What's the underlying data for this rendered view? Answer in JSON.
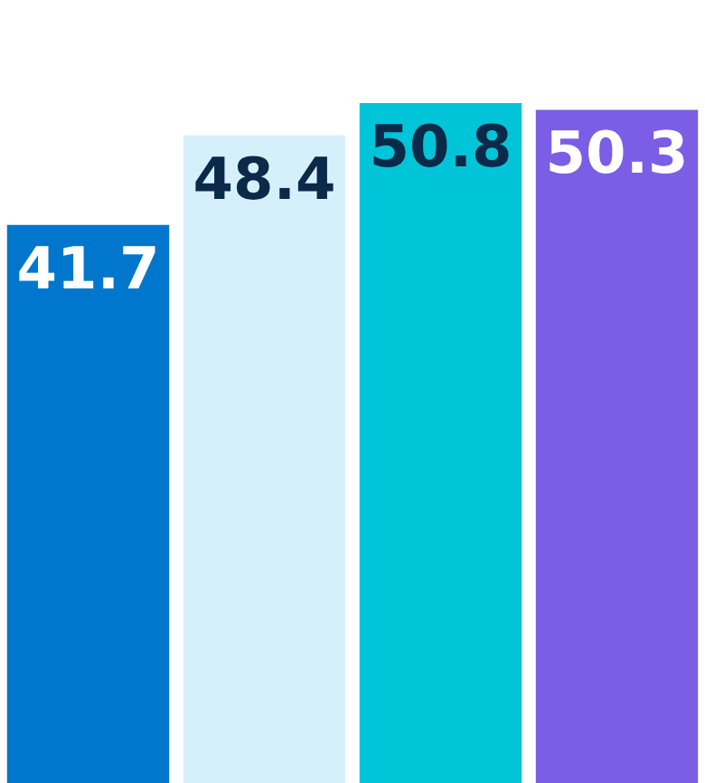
{
  "chart_data": {
    "type": "bar",
    "categories": [
      null,
      null,
      null,
      null
    ],
    "values": [
      41.7,
      48.4,
      50.8,
      50.3
    ],
    "colors": [
      "#0077cc",
      "#d6f0fb",
      "#00c4d8",
      "#7b5de6"
    ],
    "data_labels": true
  }
}
